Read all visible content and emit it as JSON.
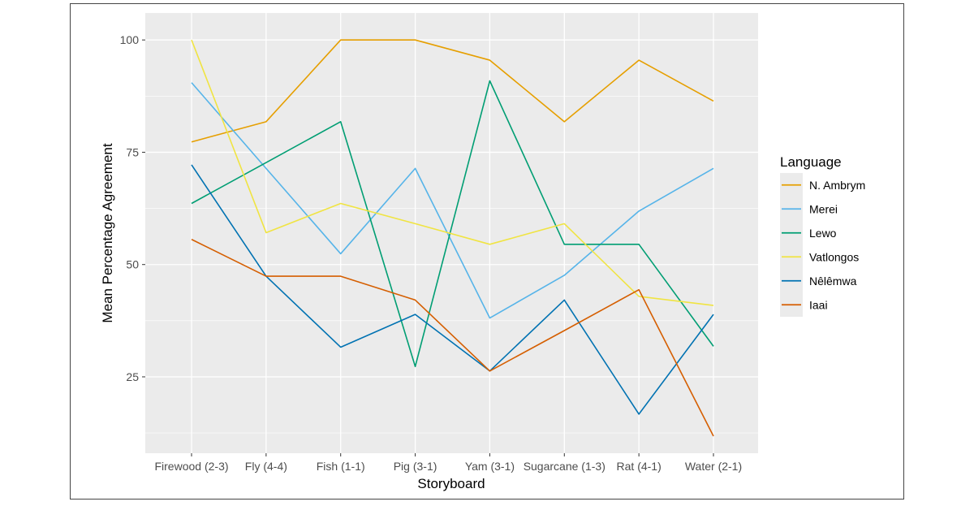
{
  "chart_data": {
    "type": "line",
    "xlabel": "Storyboard",
    "ylabel": "Mean Percentage Agreement",
    "categories": [
      "Firewood (2-3)",
      "Fly (4-4)",
      "Fish (1-1)",
      "Pig (3-1)",
      "Yam (3-1)",
      "Sugarcane (1-3)",
      "Rat (4-1)",
      "Water (2-1)"
    ],
    "ylim": [
      8,
      106
    ],
    "yticks": [
      25,
      50,
      75,
      100
    ],
    "grid": true,
    "legend": {
      "title": "Language",
      "position": "right"
    },
    "series": [
      {
        "name": "N. Ambrym",
        "color": "#e69f00",
        "values": [
          77.3,
          81.8,
          100,
          100,
          95.5,
          81.8,
          95.5,
          86.4
        ]
      },
      {
        "name": "Merei",
        "color": "#56b4e9",
        "values": [
          90.5,
          71.4,
          52.4,
          71.4,
          38.1,
          47.6,
          61.9,
          71.4
        ]
      },
      {
        "name": "Lewo",
        "color": "#009e73",
        "values": [
          63.6,
          72.7,
          81.8,
          27.3,
          90.9,
          54.5,
          54.5,
          31.8
        ]
      },
      {
        "name": "Vatlongos",
        "color": "#f0e442",
        "values": [
          100,
          57.1,
          63.6,
          59.1,
          54.5,
          59.1,
          42.9,
          40.9
        ]
      },
      {
        "name": "Nêlêmwa",
        "color": "#0072b2",
        "values": [
          72.2,
          47.4,
          31.6,
          38.9,
          26.3,
          42.1,
          16.7,
          38.9
        ]
      },
      {
        "name": "Iaai",
        "color": "#d55e00",
        "values": [
          55.6,
          47.4,
          47.4,
          42.1,
          26.3,
          35.3,
          44.4,
          11.8
        ]
      }
    ]
  }
}
